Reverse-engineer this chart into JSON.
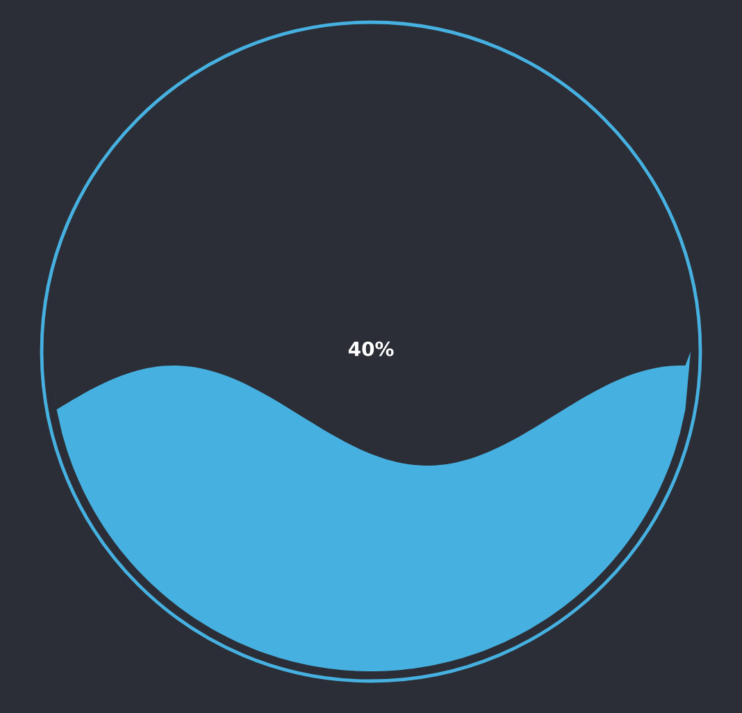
{
  "chart_data": {
    "type": "other",
    "values": [
      40
    ],
    "value_labels": [
      "40%"
    ],
    "colors": [
      "#46b1e1"
    ]
  }
}
